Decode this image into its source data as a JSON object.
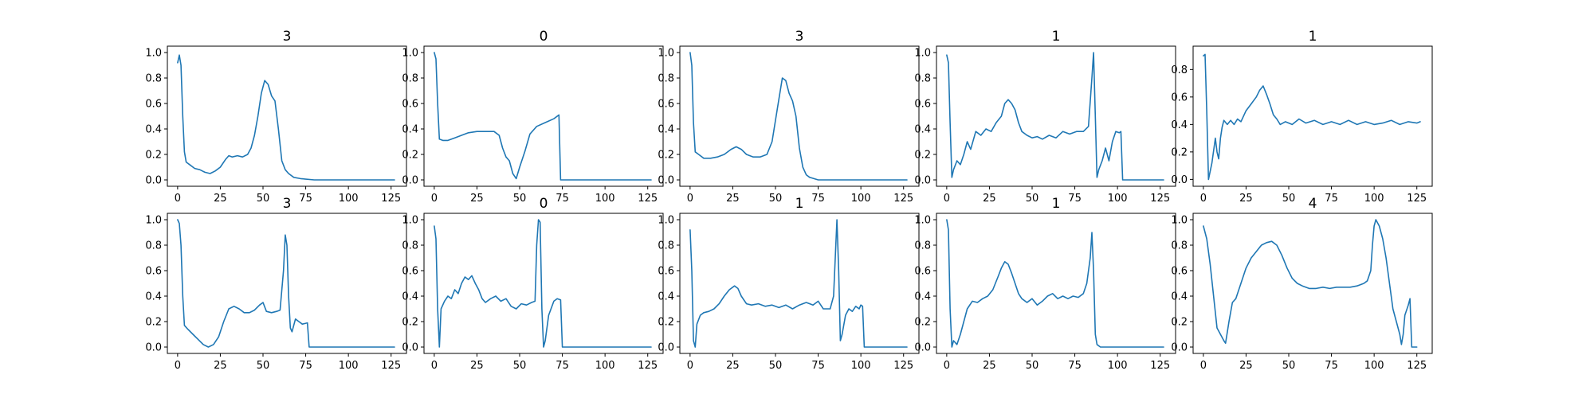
{
  "colors": {
    "series": "#1f77b4",
    "axes": "#000000",
    "background": "#ffffff"
  },
  "chart_data": [
    {
      "type": "line",
      "title": "3",
      "xlim": [
        -6,
        134
      ],
      "ylim": [
        -0.05,
        1.05
      ],
      "xticks": [
        0,
        25,
        50,
        75,
        100,
        125
      ],
      "yticks": [
        0.0,
        0.2,
        0.4,
        0.6,
        0.8,
        1.0
      ],
      "xtick_labels": [
        "0",
        "25",
        "50",
        "75",
        "100",
        "125"
      ],
      "ytick_labels": [
        "0.0",
        "0.2",
        "0.4",
        "0.6",
        "0.8",
        "1.0"
      ],
      "grid": false,
      "x": [
        0,
        1,
        2,
        3,
        4,
        5,
        7,
        10,
        13,
        16,
        19,
        22,
        25,
        28,
        30,
        32,
        35,
        38,
        41,
        43,
        45,
        47,
        49,
        51,
        53,
        55,
        57,
        59,
        61,
        63,
        65,
        68,
        72,
        80,
        100,
        127
      ],
      "y": [
        0.92,
        0.98,
        0.9,
        0.5,
        0.22,
        0.14,
        0.12,
        0.09,
        0.08,
        0.06,
        0.05,
        0.07,
        0.1,
        0.16,
        0.19,
        0.18,
        0.19,
        0.18,
        0.2,
        0.25,
        0.35,
        0.5,
        0.68,
        0.78,
        0.75,
        0.66,
        0.62,
        0.4,
        0.15,
        0.08,
        0.05,
        0.02,
        0.01,
        0.0,
        0.0,
        0.0
      ]
    },
    {
      "type": "line",
      "title": "0",
      "xlim": [
        -6,
        134
      ],
      "ylim": [
        -0.05,
        1.05
      ],
      "xticks": [
        0,
        25,
        50,
        75,
        100,
        125
      ],
      "yticks": [
        0.0,
        0.2,
        0.4,
        0.6,
        0.8,
        1.0
      ],
      "xtick_labels": [
        "0",
        "25",
        "50",
        "75",
        "100",
        "125"
      ],
      "ytick_labels": [
        "0.0",
        "0.2",
        "0.4",
        "0.6",
        "0.8",
        "1.0"
      ],
      "grid": false,
      "x": [
        0,
        1,
        2,
        3,
        5,
        8,
        12,
        16,
        20,
        25,
        30,
        35,
        38,
        40,
        42,
        44,
        46,
        48,
        50,
        53,
        56,
        60,
        65,
        70,
        73,
        74,
        76,
        100,
        127
      ],
      "y": [
        1.0,
        0.95,
        0.6,
        0.32,
        0.31,
        0.31,
        0.33,
        0.35,
        0.37,
        0.38,
        0.38,
        0.38,
        0.35,
        0.25,
        0.18,
        0.15,
        0.05,
        0.01,
        0.1,
        0.22,
        0.36,
        0.42,
        0.45,
        0.48,
        0.51,
        0.0,
        0.0,
        0.0,
        0.0
      ]
    },
    {
      "type": "line",
      "title": "3",
      "xlim": [
        -6,
        134
      ],
      "ylim": [
        -0.05,
        1.05
      ],
      "xticks": [
        0,
        25,
        50,
        75,
        100,
        125
      ],
      "yticks": [
        0.0,
        0.2,
        0.4,
        0.6,
        0.8,
        1.0
      ],
      "xtick_labels": [
        "0",
        "25",
        "50",
        "75",
        "100",
        "125"
      ],
      "ytick_labels": [
        "0.0",
        "0.2",
        "0.4",
        "0.6",
        "0.8",
        "1.0"
      ],
      "grid": false,
      "x": [
        0,
        1,
        2,
        3,
        5,
        8,
        12,
        16,
        20,
        24,
        27,
        30,
        33,
        37,
        41,
        45,
        48,
        51,
        54,
        56,
        58,
        60,
        62,
        64,
        66,
        68,
        70,
        75,
        100,
        127
      ],
      "y": [
        1.0,
        0.9,
        0.45,
        0.22,
        0.2,
        0.17,
        0.17,
        0.18,
        0.2,
        0.24,
        0.26,
        0.24,
        0.2,
        0.18,
        0.18,
        0.2,
        0.3,
        0.55,
        0.8,
        0.78,
        0.68,
        0.62,
        0.5,
        0.25,
        0.1,
        0.04,
        0.02,
        0.0,
        0.0,
        0.0
      ]
    },
    {
      "type": "line",
      "title": "1",
      "xlim": [
        -6,
        134
      ],
      "ylim": [
        -0.05,
        1.05
      ],
      "xticks": [
        0,
        25,
        50,
        75,
        100,
        125
      ],
      "yticks": [
        0.0,
        0.2,
        0.4,
        0.6,
        0.8,
        1.0
      ],
      "xtick_labels": [
        "0",
        "25",
        "50",
        "75",
        "100",
        "125"
      ],
      "ytick_labels": [
        "0.0",
        "0.2",
        "0.4",
        "0.6",
        "0.8",
        "1.0"
      ],
      "grid": false,
      "x": [
        0,
        1,
        2,
        3,
        4,
        6,
        8,
        10,
        12,
        14,
        17,
        20,
        23,
        26,
        29,
        32,
        34,
        36,
        38,
        40,
        42,
        44,
        47,
        50,
        53,
        56,
        60,
        64,
        68,
        72,
        76,
        80,
        83,
        85,
        86,
        87,
        88,
        89,
        91,
        93,
        95,
        97,
        99,
        101,
        102,
        103,
        110,
        127
      ],
      "y": [
        0.98,
        0.92,
        0.45,
        0.02,
        0.08,
        0.15,
        0.12,
        0.2,
        0.3,
        0.24,
        0.38,
        0.35,
        0.4,
        0.38,
        0.45,
        0.5,
        0.6,
        0.63,
        0.6,
        0.55,
        0.45,
        0.38,
        0.35,
        0.33,
        0.34,
        0.32,
        0.35,
        0.33,
        0.38,
        0.36,
        0.38,
        0.38,
        0.42,
        0.8,
        1.0,
        0.5,
        0.02,
        0.08,
        0.15,
        0.25,
        0.15,
        0.3,
        0.38,
        0.37,
        0.38,
        0.0,
        0.0,
        0.0
      ]
    },
    {
      "type": "line",
      "title": "1",
      "xlim": [
        -6,
        134
      ],
      "ylim": [
        -0.05,
        0.97
      ],
      "xticks": [
        0,
        25,
        50,
        75,
        100,
        125
      ],
      "yticks": [
        0.0,
        0.2,
        0.4,
        0.6,
        0.8
      ],
      "xtick_labels": [
        "0",
        "25",
        "50",
        "75",
        "100",
        "125"
      ],
      "ytick_labels": [
        "0.0",
        "0.2",
        "0.4",
        "0.6",
        "0.8"
      ],
      "grid": false,
      "x": [
        0,
        1,
        2,
        3,
        5,
        7,
        8,
        9,
        10,
        11,
        12,
        14,
        16,
        18,
        20,
        22,
        25,
        28,
        31,
        33,
        35,
        37,
        39,
        41,
        43,
        45,
        48,
        52,
        56,
        60,
        65,
        70,
        75,
        80,
        85,
        90,
        95,
        100,
        105,
        110,
        115,
        120,
        125,
        127
      ],
      "y": [
        0.9,
        0.91,
        0.5,
        0.0,
        0.12,
        0.3,
        0.2,
        0.15,
        0.3,
        0.38,
        0.43,
        0.4,
        0.43,
        0.4,
        0.44,
        0.42,
        0.5,
        0.55,
        0.6,
        0.65,
        0.68,
        0.62,
        0.55,
        0.47,
        0.44,
        0.4,
        0.42,
        0.4,
        0.44,
        0.41,
        0.43,
        0.4,
        0.42,
        0.4,
        0.43,
        0.4,
        0.42,
        0.4,
        0.41,
        0.43,
        0.4,
        0.42,
        0.41,
        0.42
      ]
    },
    {
      "type": "line",
      "title": "3",
      "xlim": [
        -6,
        134
      ],
      "ylim": [
        -0.05,
        1.05
      ],
      "xticks": [
        0,
        25,
        50,
        75,
        100,
        125
      ],
      "yticks": [
        0.0,
        0.2,
        0.4,
        0.6,
        0.8,
        1.0
      ],
      "xtick_labels": [
        "0",
        "25",
        "50",
        "75",
        "100",
        "125"
      ],
      "ytick_labels": [
        "0.0",
        "0.2",
        "0.4",
        "0.6",
        "0.8",
        "1.0"
      ],
      "grid": false,
      "x": [
        0,
        1,
        2,
        3,
        4,
        6,
        9,
        12,
        15,
        18,
        21,
        24,
        27,
        30,
        33,
        36,
        39,
        42,
        45,
        48,
        50,
        52,
        55,
        58,
        60,
        62,
        63,
        64,
        65,
        66,
        67,
        69,
        71,
        73,
        76,
        77,
        80,
        100,
        127
      ],
      "y": [
        1.0,
        0.97,
        0.8,
        0.4,
        0.17,
        0.14,
        0.1,
        0.06,
        0.02,
        0.0,
        0.02,
        0.08,
        0.2,
        0.3,
        0.32,
        0.3,
        0.27,
        0.27,
        0.29,
        0.33,
        0.35,
        0.28,
        0.27,
        0.28,
        0.29,
        0.6,
        0.88,
        0.8,
        0.4,
        0.15,
        0.12,
        0.22,
        0.2,
        0.18,
        0.19,
        0.0,
        0.0,
        0.0,
        0.0
      ]
    },
    {
      "type": "line",
      "title": "0",
      "xlim": [
        -6,
        134
      ],
      "ylim": [
        -0.05,
        1.05
      ],
      "xticks": [
        0,
        25,
        50,
        75,
        100,
        125
      ],
      "yticks": [
        0.0,
        0.2,
        0.4,
        0.6,
        0.8,
        1.0
      ],
      "xtick_labels": [
        "0",
        "25",
        "50",
        "75",
        "100",
        "125"
      ],
      "ytick_labels": [
        "0.0",
        "0.2",
        "0.4",
        "0.6",
        "0.8",
        "1.0"
      ],
      "grid": false,
      "x": [
        0,
        1,
        2,
        3,
        4,
        6,
        8,
        10,
        12,
        14,
        16,
        18,
        20,
        22,
        24,
        26,
        28,
        30,
        33,
        36,
        39,
        42,
        45,
        48,
        51,
        54,
        57,
        59,
        60,
        61,
        62,
        63,
        64,
        65,
        67,
        70,
        72,
        74,
        75,
        100,
        127
      ],
      "y": [
        0.95,
        0.85,
        0.3,
        0.0,
        0.3,
        0.36,
        0.4,
        0.38,
        0.45,
        0.42,
        0.5,
        0.55,
        0.53,
        0.56,
        0.5,
        0.45,
        0.38,
        0.35,
        0.38,
        0.4,
        0.36,
        0.38,
        0.32,
        0.3,
        0.34,
        0.33,
        0.35,
        0.36,
        0.8,
        1.0,
        0.98,
        0.3,
        0.0,
        0.05,
        0.25,
        0.36,
        0.38,
        0.37,
        0.0,
        0.0,
        0.0
      ]
    },
    {
      "type": "line",
      "title": "1",
      "xlim": [
        -6,
        134
      ],
      "ylim": [
        -0.05,
        1.05
      ],
      "xticks": [
        0,
        25,
        50,
        75,
        100,
        125
      ],
      "yticks": [
        0.0,
        0.2,
        0.4,
        0.6,
        0.8,
        1.0
      ],
      "xtick_labels": [
        "0",
        "25",
        "50",
        "75",
        "100",
        "125"
      ],
      "ytick_labels": [
        "0.0",
        "0.2",
        "0.4",
        "0.6",
        "0.8",
        "1.0"
      ],
      "grid": false,
      "x": [
        0,
        1,
        2,
        3,
        4,
        6,
        8,
        11,
        14,
        17,
        20,
        23,
        26,
        28,
        30,
        33,
        36,
        40,
        44,
        48,
        52,
        56,
        60,
        64,
        68,
        72,
        75,
        78,
        82,
        84,
        85,
        86,
        87,
        88,
        89,
        91,
        93,
        95,
        97,
        99,
        100,
        101,
        102,
        110,
        127
      ],
      "y": [
        0.92,
        0.6,
        0.05,
        0.0,
        0.18,
        0.25,
        0.27,
        0.28,
        0.3,
        0.34,
        0.4,
        0.45,
        0.48,
        0.46,
        0.4,
        0.34,
        0.33,
        0.34,
        0.32,
        0.33,
        0.31,
        0.33,
        0.3,
        0.33,
        0.35,
        0.33,
        0.36,
        0.3,
        0.3,
        0.4,
        0.7,
        1.0,
        0.6,
        0.05,
        0.1,
        0.25,
        0.3,
        0.28,
        0.32,
        0.3,
        0.33,
        0.32,
        0.0,
        0.0,
        0.0
      ]
    },
    {
      "type": "line",
      "title": "1",
      "xlim": [
        -6,
        134
      ],
      "ylim": [
        -0.05,
        1.05
      ],
      "xticks": [
        0,
        25,
        50,
        75,
        100,
        125
      ],
      "yticks": [
        0.0,
        0.2,
        0.4,
        0.6,
        0.8,
        1.0
      ],
      "xtick_labels": [
        "0",
        "25",
        "50",
        "75",
        "100",
        "125"
      ],
      "ytick_labels": [
        "0.0",
        "0.2",
        "0.4",
        "0.6",
        "0.8",
        "1.0"
      ],
      "grid": false,
      "x": [
        0,
        1,
        2,
        3,
        4,
        6,
        8,
        10,
        12,
        15,
        18,
        21,
        24,
        27,
        30,
        32,
        34,
        36,
        38,
        40,
        42,
        44,
        47,
        50,
        53,
        56,
        59,
        62,
        65,
        68,
        71,
        74,
        77,
        80,
        82,
        84,
        85,
        86,
        87,
        88,
        90,
        95,
        110,
        127
      ],
      "y": [
        1.0,
        0.92,
        0.3,
        0.0,
        0.05,
        0.02,
        0.1,
        0.2,
        0.3,
        0.36,
        0.35,
        0.38,
        0.4,
        0.45,
        0.55,
        0.62,
        0.67,
        0.65,
        0.58,
        0.5,
        0.42,
        0.38,
        0.35,
        0.38,
        0.33,
        0.36,
        0.4,
        0.42,
        0.38,
        0.4,
        0.38,
        0.4,
        0.39,
        0.42,
        0.5,
        0.7,
        0.9,
        0.6,
        0.1,
        0.02,
        0.0,
        0.0,
        0.0,
        0.0
      ]
    },
    {
      "type": "line",
      "title": "4",
      "xlim": [
        -6,
        134
      ],
      "ylim": [
        -0.05,
        1.05
      ],
      "xticks": [
        0,
        25,
        50,
        75,
        100,
        125
      ],
      "yticks": [
        0.0,
        0.2,
        0.4,
        0.6,
        0.8,
        1.0
      ],
      "xtick_labels": [
        "0",
        "25",
        "50",
        "75",
        "100",
        "125"
      ],
      "ytick_labels": [
        "0.0",
        "0.2",
        "0.4",
        "0.6",
        "0.8",
        "1.0"
      ],
      "grid": false,
      "x": [
        0,
        2,
        4,
        6,
        8,
        10,
        12,
        13,
        15,
        17,
        19,
        22,
        25,
        28,
        31,
        34,
        37,
        40,
        43,
        46,
        49,
        52,
        55,
        58,
        62,
        66,
        70,
        74,
        78,
        82,
        86,
        90,
        94,
        96,
        98,
        99,
        100,
        101,
        103,
        105,
        107,
        109,
        111,
        113,
        115,
        116,
        117,
        118,
        120,
        121,
        122,
        123,
        125
      ],
      "y": [
        0.95,
        0.85,
        0.65,
        0.4,
        0.15,
        0.1,
        0.05,
        0.03,
        0.2,
        0.35,
        0.38,
        0.5,
        0.62,
        0.7,
        0.75,
        0.8,
        0.82,
        0.83,
        0.8,
        0.72,
        0.62,
        0.54,
        0.5,
        0.48,
        0.46,
        0.46,
        0.47,
        0.46,
        0.47,
        0.47,
        0.47,
        0.48,
        0.5,
        0.52,
        0.6,
        0.8,
        0.95,
        1.0,
        0.95,
        0.85,
        0.7,
        0.5,
        0.3,
        0.2,
        0.1,
        0.02,
        0.1,
        0.25,
        0.33,
        0.38,
        0.0,
        0.0,
        0.0
      ]
    }
  ]
}
